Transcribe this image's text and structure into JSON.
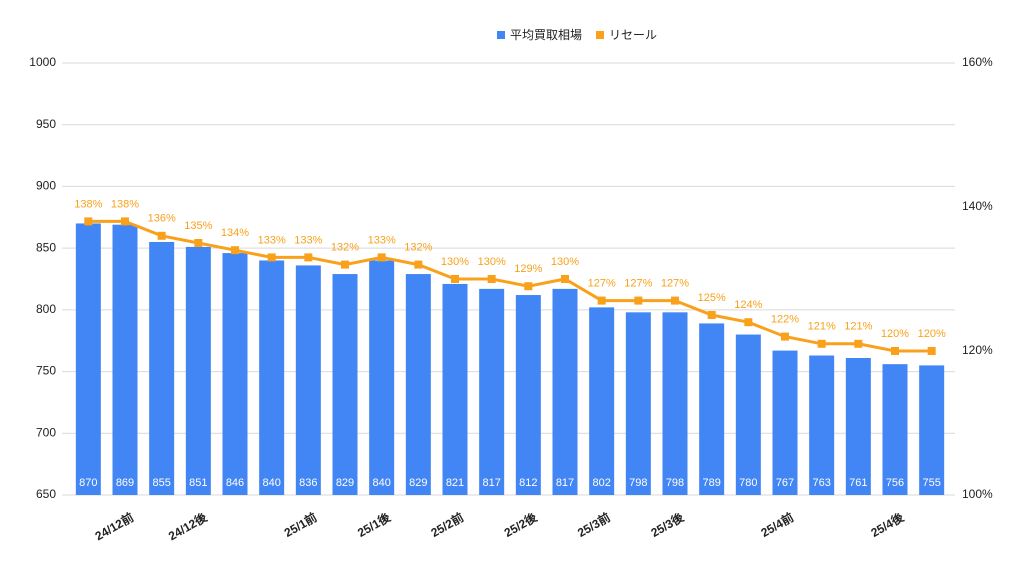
{
  "chart_data": {
    "type": "bar",
    "categories": [
      null,
      "24/12前",
      null,
      "24/12後",
      null,
      null,
      "25/1前",
      null,
      "25/1後",
      null,
      "25/2前",
      null,
      "25/2後",
      null,
      "25/3前",
      null,
      "25/3後",
      null,
      null,
      "25/4前",
      null,
      null,
      "25/4後",
      null
    ],
    "series": [
      {
        "name": "平均買取相場",
        "type": "bar",
        "color": "#4285f4",
        "values": [
          870,
          869,
          855,
          851,
          846,
          840,
          836,
          829,
          840,
          829,
          821,
          817,
          812,
          817,
          802,
          798,
          798,
          789,
          780,
          767,
          763,
          761,
          756,
          755
        ]
      },
      {
        "name": "リセール",
        "type": "line",
        "axis": "y2",
        "color": "#f9a11b",
        "values": [
          138,
          138,
          136,
          135,
          134,
          133,
          133,
          132,
          133,
          132,
          130,
          130,
          129,
          130,
          127,
          127,
          127,
          125,
          124,
          122,
          121,
          121,
          120,
          120
        ],
        "value_labels": [
          "138%",
          "138%",
          "136%",
          "135%",
          "134%",
          "133%",
          "133%",
          "132%",
          "133%",
          "132%",
          "130%",
          "130%",
          "129%",
          "130%",
          "127%",
          "127%",
          "127%",
          "125%",
          "124%",
          "122%",
          "121%",
          "121%",
          "120%",
          "120%"
        ]
      }
    ],
    "ylim": [
      650,
      1000
    ],
    "yticks": [
      650,
      700,
      750,
      800,
      850,
      900,
      950,
      1000
    ],
    "y2lim": [
      100,
      160
    ],
    "y2ticks": [
      {
        "value": 100,
        "label": "100%"
      },
      {
        "value": 120,
        "label": "120%"
      },
      {
        "value": 140,
        "label": "140%"
      },
      {
        "value": 160,
        "label": "160%"
      }
    ],
    "grid": true,
    "legend": "top"
  }
}
